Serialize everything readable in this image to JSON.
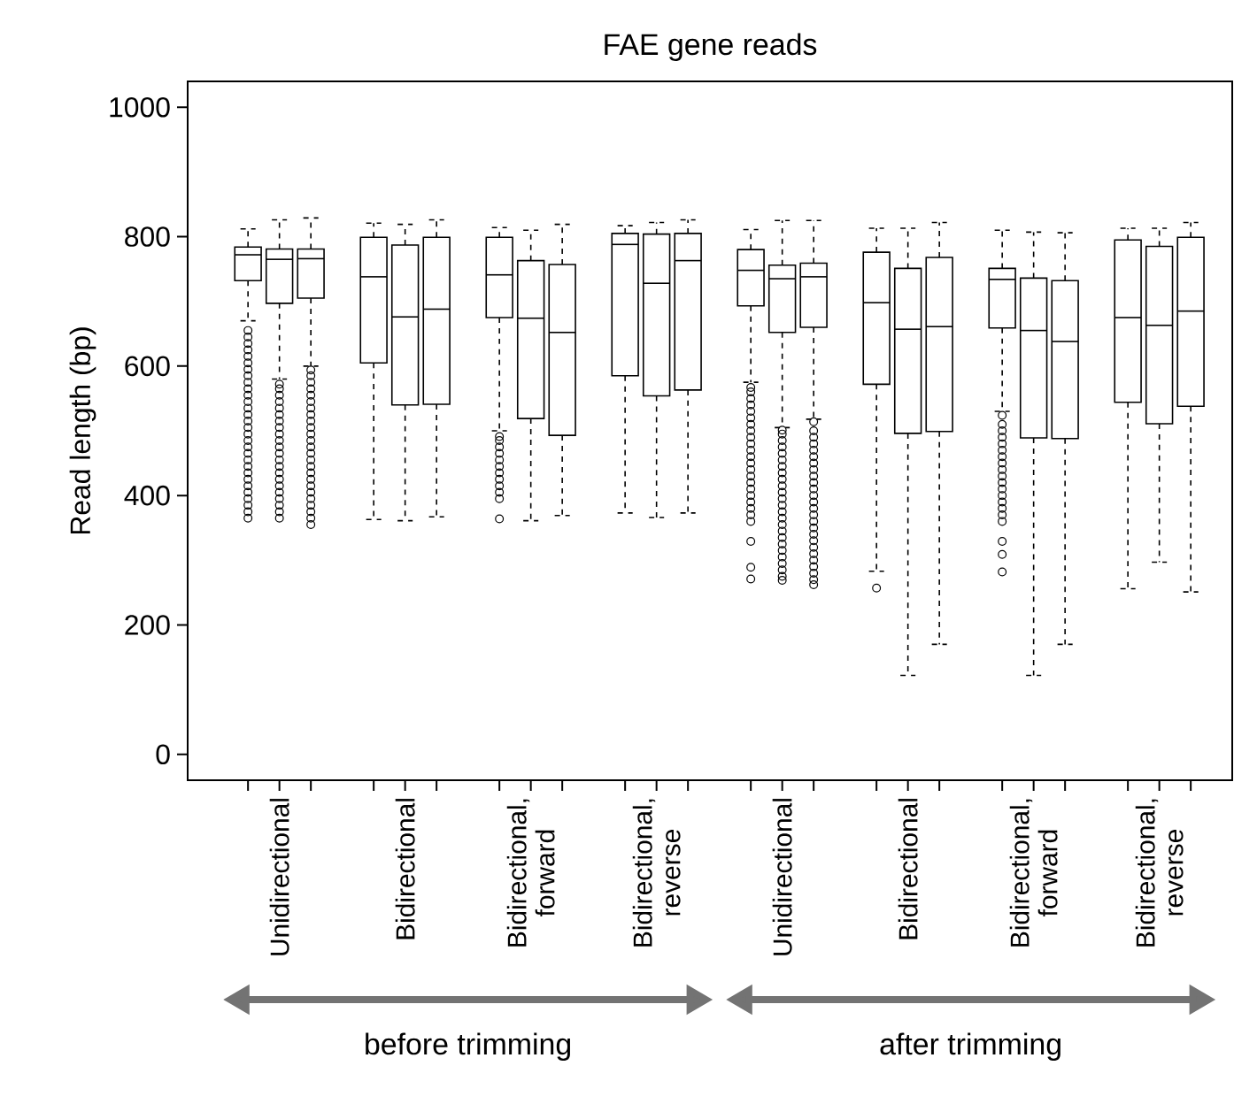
{
  "chart_data": {
    "type": "box",
    "title": "FAE gene reads",
    "ylabel": "Read length (bp)",
    "categories": [
      "Unidirectional",
      "Bidirectional",
      "Bidirectional, forward",
      "Bidirectional, reverse",
      "Unidirectional",
      "Bidirectional",
      "Bidirectional, forward",
      "Bidirectional, reverse"
    ],
    "ylim": [
      -40,
      1040
    ],
    "yticks": [
      0,
      200,
      400,
      600,
      800,
      1000
    ],
    "series": [
      {
        "color": "#000000",
        "boxes": [
          {
            "low": 670,
            "q1": 732,
            "median": 772,
            "q3": 784,
            "high": 812,
            "outliers": [
              365,
              375,
              385,
              395,
              405,
              415,
              425,
              435,
              445,
              455,
              465,
              475,
              485,
              495,
              505,
              515,
              525,
              535,
              545,
              555,
              565,
              575,
              585,
              595,
              605,
              615,
              625,
              635,
              645,
              655
            ]
          },
          {
            "low": 363,
            "q1": 605,
            "median": 738,
            "q3": 799,
            "high": 821
          },
          {
            "low": 500,
            "q1": 675,
            "median": 741,
            "q3": 799,
            "high": 814,
            "outliers": [
              364,
              395,
              405,
              415,
              425,
              435,
              445,
              455,
              465,
              475,
              485,
              491
            ]
          },
          {
            "low": 373,
            "q1": 585,
            "median": 788,
            "q3": 805,
            "high": 817
          },
          {
            "low": 575,
            "q1": 693,
            "median": 748,
            "q3": 780,
            "high": 811,
            "outliers": [
              271,
              289,
              329,
              360,
              370,
              380,
              390,
              400,
              410,
              420,
              430,
              440,
              450,
              460,
              470,
              480,
              490,
              500,
              510,
              520,
              530,
              540,
              550,
              560,
              567
            ]
          },
          {
            "low": 283,
            "q1": 572,
            "median": 698,
            "q3": 776,
            "high": 813,
            "outliers": [
              257
            ]
          },
          {
            "low": 530,
            "q1": 659,
            "median": 734,
            "q3": 751,
            "high": 810,
            "outliers": [
              282,
              309,
              329,
              360,
              370,
              380,
              390,
              400,
              410,
              420,
              430,
              440,
              450,
              460,
              470,
              480,
              490,
              500,
              510,
              524
            ]
          },
          {
            "low": 256,
            "q1": 544,
            "median": 675,
            "q3": 795,
            "high": 813
          }
        ]
      },
      {
        "color": "#000000",
        "boxes": [
          {
            "low": 580,
            "q1": 697,
            "median": 765,
            "q3": 781,
            "high": 826,
            "outliers": [
              365,
              375,
              385,
              395,
              405,
              415,
              425,
              435,
              445,
              455,
              465,
              475,
              485,
              495,
              505,
              515,
              525,
              535,
              545,
              555,
              565,
              572
            ]
          },
          {
            "low": 361,
            "q1": 540,
            "median": 676,
            "q3": 787,
            "high": 819
          },
          {
            "low": 361,
            "q1": 519,
            "median": 674,
            "q3": 763,
            "high": 810
          },
          {
            "low": 366,
            "q1": 554,
            "median": 728,
            "q3": 804,
            "high": 822
          },
          {
            "low": 505,
            "q1": 652,
            "median": 735,
            "q3": 756,
            "high": 825,
            "outliers": [
              269,
              275,
              285,
              295,
              305,
              315,
              325,
              335,
              345,
              355,
              365,
              375,
              385,
              395,
              405,
              415,
              425,
              435,
              445,
              455,
              465,
              475,
              485,
              495,
              501
            ]
          },
          {
            "low": 122,
            "q1": 496,
            "median": 657,
            "q3": 751,
            "high": 813
          },
          {
            "low": 122,
            "q1": 489,
            "median": 655,
            "q3": 736,
            "high": 807
          },
          {
            "low": 297,
            "q1": 511,
            "median": 663,
            "q3": 785,
            "high": 813
          }
        ]
      },
      {
        "color": "#000000",
        "boxes": [
          {
            "low": 600,
            "q1": 705,
            "median": 766,
            "q3": 781,
            "high": 829,
            "outliers": [
              355,
              365,
              375,
              385,
              395,
              405,
              415,
              425,
              435,
              445,
              455,
              465,
              475,
              485,
              495,
              505,
              515,
              525,
              535,
              545,
              555,
              565,
              575,
              585,
              594
            ]
          },
          {
            "low": 367,
            "q1": 541,
            "median": 688,
            "q3": 799,
            "high": 826
          },
          {
            "low": 369,
            "q1": 493,
            "median": 652,
            "q3": 757,
            "high": 819
          },
          {
            "low": 373,
            "q1": 563,
            "median": 763,
            "q3": 805,
            "high": 826
          },
          {
            "low": 518,
            "q1": 660,
            "median": 738,
            "q3": 759,
            "high": 825,
            "outliers": [
              262,
              270,
              280,
              290,
              300,
              310,
              320,
              330,
              340,
              350,
              360,
              370,
              380,
              390,
              400,
              410,
              420,
              430,
              440,
              450,
              460,
              470,
              480,
              490,
              500,
              514
            ]
          },
          {
            "low": 170,
            "q1": 499,
            "median": 661,
            "q3": 768,
            "high": 822
          },
          {
            "low": 170,
            "q1": 488,
            "median": 638,
            "q3": 732,
            "high": 806
          },
          {
            "low": 251,
            "q1": 538,
            "median": 685,
            "q3": 799,
            "high": 822
          }
        ]
      }
    ],
    "annotations": [
      "before trimming",
      "after trimming"
    ]
  }
}
